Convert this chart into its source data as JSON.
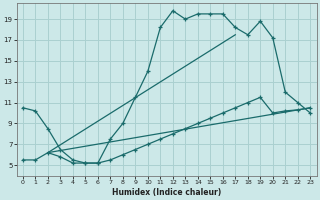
{
  "title": "",
  "xlabel": "Humidex (Indice chaleur)",
  "bg_color": "#cce8e8",
  "grid_color": "#aad0d0",
  "line_color": "#1a6b6b",
  "xlim": [
    -0.5,
    23.5
  ],
  "ylim": [
    4.0,
    20.5
  ],
  "xticks": [
    0,
    1,
    2,
    3,
    4,
    5,
    6,
    7,
    8,
    9,
    10,
    11,
    12,
    13,
    14,
    15,
    16,
    17,
    18,
    19,
    20,
    21,
    22,
    23
  ],
  "yticks": [
    5,
    7,
    9,
    11,
    13,
    15,
    17,
    19
  ],
  "line1_x": [
    0,
    1,
    2,
    3,
    4,
    5,
    6,
    7,
    8,
    9,
    10,
    11,
    12,
    13,
    14,
    15,
    16,
    17,
    18,
    19,
    20,
    21,
    22,
    23
  ],
  "line1_y": [
    10.5,
    10.2,
    8.5,
    6.5,
    5.5,
    5.2,
    5.2,
    7.5,
    9.0,
    11.5,
    14.0,
    18.2,
    19.8,
    19.0,
    19.5,
    19.5,
    19.5,
    18.2,
    17.5,
    18.8,
    17.2,
    12.0,
    11.0,
    10.0
  ],
  "line2_x": [
    0,
    1,
    2,
    3,
    4,
    5,
    6,
    7,
    8,
    9,
    10,
    11,
    12,
    13,
    14,
    15,
    16,
    17,
    18,
    19,
    20,
    21,
    22,
    23
  ],
  "line2_y": [
    5.5,
    5.5,
    6.2,
    5.8,
    5.2,
    5.2,
    5.2,
    5.5,
    6.0,
    6.5,
    7.0,
    7.5,
    8.0,
    8.5,
    9.0,
    9.5,
    10.0,
    10.5,
    11.0,
    11.5,
    10.0,
    10.2,
    10.3,
    10.5
  ],
  "line3_x": [
    2,
    23
  ],
  "line3_y": [
    6.2,
    10.5
  ],
  "line4_x": [
    2,
    17
  ],
  "line4_y": [
    6.2,
    17.5
  ]
}
